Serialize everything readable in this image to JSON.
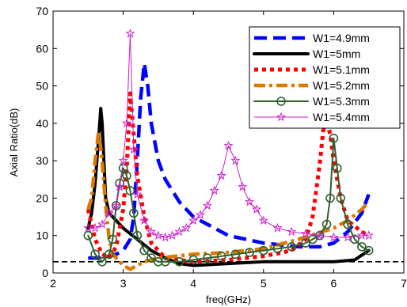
{
  "chart_data": {
    "type": "line",
    "xlabel": "freq(GHz)",
    "ylabel": "Axial Ratio(dB)",
    "xlim": [
      2,
      7
    ],
    "ylim": [
      0,
      70
    ],
    "xticks": [
      2,
      3,
      4,
      5,
      6,
      7
    ],
    "yticks": [
      0,
      10,
      20,
      30,
      40,
      50,
      60,
      70
    ],
    "grid": false,
    "legend_position": "top-right",
    "reference_line": {
      "y": 3,
      "style": "dashed",
      "color": "#000000"
    },
    "series": [
      {
        "name": "W1=4.9mm",
        "color": "#0000ff",
        "style": "dash",
        "marker": "none",
        "x": [
          2.5,
          2.7,
          2.9,
          3.0,
          3.1,
          3.15,
          3.2,
          3.25,
          3.3,
          3.35,
          3.4,
          3.5,
          3.6,
          3.8,
          4.0,
          4.5,
          5.0,
          5.5,
          5.8,
          6.0,
          6.2,
          6.4,
          6.5
        ],
        "y": [
          4,
          4,
          5,
          6,
          9,
          15,
          30,
          47,
          56,
          50,
          40,
          30,
          25,
          19,
          15,
          10,
          8,
          7,
          7,
          8,
          11,
          16,
          21
        ]
      },
      {
        "name": "W1=5mm",
        "color": "#000000",
        "style": "solid",
        "marker": "none",
        "x": [
          2.5,
          2.55,
          2.6,
          2.65,
          2.68,
          2.7,
          2.72,
          2.75,
          2.8,
          2.9,
          3.0,
          3.2,
          3.4,
          3.6,
          3.8,
          4.0,
          4.5,
          5.0,
          5.5,
          6.0,
          6.3,
          6.5
        ],
        "y": [
          12,
          16,
          24,
          36,
          44,
          40,
          32,
          20,
          16,
          14,
          12,
          9,
          6,
          4,
          2.5,
          2,
          2.5,
          3,
          3,
          3,
          3.5,
          6
        ]
      },
      {
        "name": "W1=5.1mm",
        "color": "#ff0000",
        "style": "dot",
        "marker": "none",
        "x": [
          2.5,
          2.6,
          2.7,
          2.8,
          2.9,
          3.0,
          3.05,
          3.1,
          3.15,
          3.2,
          3.3,
          3.4,
          3.6,
          4.0,
          4.5,
          5.0,
          5.4,
          5.6,
          5.7,
          5.8,
          5.85,
          5.9,
          5.95,
          6.0,
          6.1,
          6.2,
          6.4,
          6.5
        ],
        "y": [
          17,
          9,
          5,
          4,
          7,
          17,
          28,
          48,
          37,
          26,
          15,
          8,
          4,
          3,
          3.5,
          4.5,
          6,
          9,
          15,
          29,
          38,
          41,
          37,
          30,
          20,
          14,
          11,
          10
        ]
      },
      {
        "name": "W1=5.2mm",
        "color": "#dd7700",
        "style": "dashdot",
        "marker": "none",
        "x": [
          2.5,
          2.55,
          2.6,
          2.65,
          2.7,
          2.75,
          2.8,
          2.85,
          2.9,
          3.0,
          3.1,
          3.2,
          3.3,
          3.5,
          4.0,
          4.5,
          5.0,
          5.5,
          6.0,
          6.2,
          6.4,
          6.5
        ],
        "y": [
          17,
          20,
          30,
          38,
          30,
          18,
          9,
          5,
          4,
          2,
          1,
          2,
          3,
          4,
          5,
          5.5,
          6.5,
          9,
          12,
          14,
          17,
          19
        ]
      },
      {
        "name": "W1=5.3mm",
        "color": "#2f5f2f",
        "style": "solid",
        "marker": "circle",
        "x": [
          2.5,
          2.6,
          2.7,
          2.8,
          2.85,
          2.9,
          2.95,
          3.0,
          3.05,
          3.1,
          3.15,
          3.2,
          3.3,
          3.4,
          3.5,
          3.6,
          3.8,
          4.0,
          4.2,
          4.4,
          4.6,
          4.8,
          5.0,
          5.2,
          5.4,
          5.6,
          5.7,
          5.8,
          5.9,
          5.95,
          6.0,
          6.05,
          6.1,
          6.2,
          6.3,
          6.4,
          6.5
        ],
        "y": [
          10,
          5,
          3,
          5,
          9,
          18,
          24,
          28,
          26,
          22,
          16,
          10,
          6,
          4,
          3,
          3,
          3,
          3.5,
          4,
          4.5,
          5,
          5.5,
          6,
          6.5,
          7,
          8,
          9,
          10,
          13,
          20,
          36,
          28,
          20,
          13,
          9,
          7,
          6
        ]
      },
      {
        "name": "W1=5.4mm",
        "color": "#cc22cc",
        "style": "solid",
        "marker": "star",
        "x": [
          2.5,
          2.6,
          2.7,
          2.8,
          2.9,
          2.95,
          3.0,
          3.05,
          3.1,
          3.15,
          3.2,
          3.3,
          3.4,
          3.5,
          3.6,
          3.7,
          3.8,
          3.9,
          4.0,
          4.1,
          4.2,
          4.3,
          4.4,
          4.5,
          4.6,
          4.7,
          4.8,
          4.9,
          5.0,
          5.2,
          5.4,
          5.6,
          5.8,
          6.0,
          6.2,
          6.4,
          6.5
        ],
        "y": [
          12,
          12,
          13,
          16,
          18,
          23,
          30,
          40,
          64,
          33,
          21,
          14,
          11,
          10,
          9.5,
          10,
          11,
          12,
          14,
          15.5,
          18,
          22,
          26,
          34,
          30,
          23,
          19,
          17,
          14,
          12,
          11,
          10.5,
          10,
          9.5,
          9.5,
          10,
          10
        ]
      }
    ]
  }
}
